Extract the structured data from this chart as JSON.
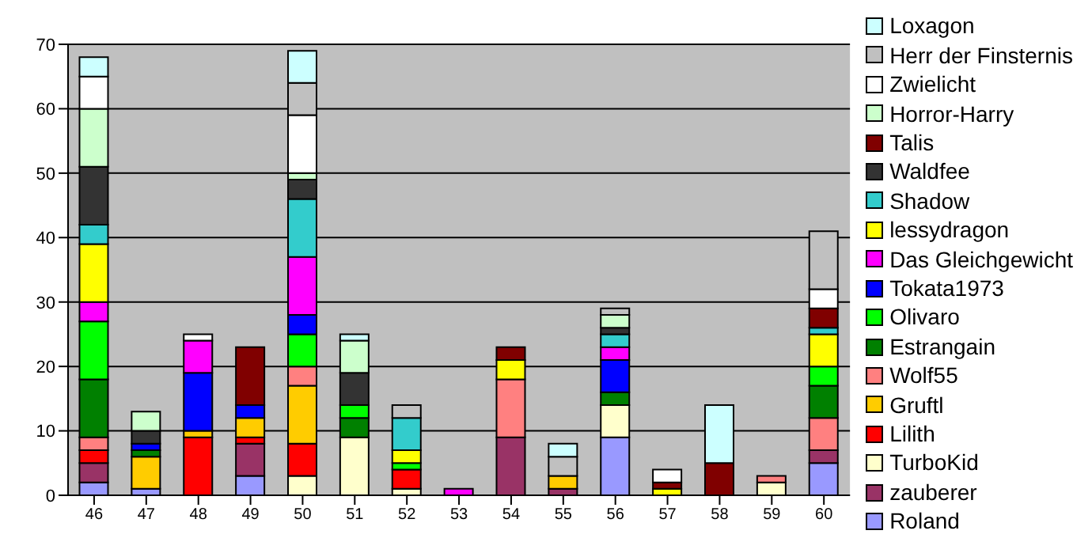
{
  "chart_data": {
    "type": "bar",
    "stacked": true,
    "categories": [
      "46",
      "47",
      "48",
      "49",
      "50",
      "51",
      "52",
      "53",
      "54",
      "55",
      "56",
      "57",
      "58",
      "59",
      "60"
    ],
    "ylim": [
      0,
      70
    ],
    "yticks": [
      0,
      10,
      20,
      30,
      40,
      50,
      60,
      70
    ],
    "grid": "y",
    "legend": "right",
    "series": [
      {
        "name": "Roland",
        "color": "#9999ff",
        "values": [
          2,
          1,
          0,
          3,
          0,
          0,
          0,
          0,
          0,
          0,
          9,
          0,
          0,
          0,
          5
        ]
      },
      {
        "name": "zauberer",
        "color": "#993366",
        "values": [
          3,
          0,
          0,
          5,
          0,
          0,
          0,
          0,
          9,
          1,
          0,
          0,
          0,
          0,
          2
        ]
      },
      {
        "name": "TurboKid",
        "color": "#ffffcc",
        "values": [
          0,
          0,
          0,
          0,
          3,
          9,
          1,
          0,
          0,
          0,
          5,
          0,
          0,
          2,
          0
        ]
      },
      {
        "name": "Lilith",
        "color": "#ff0000",
        "values": [
          2,
          0,
          9,
          1,
          5,
          0,
          3,
          0,
          0,
          0,
          0,
          0,
          0,
          0,
          0
        ]
      },
      {
        "name": "Gruftl",
        "color": "#ffcc00",
        "values": [
          0,
          5,
          1,
          3,
          9,
          0,
          0,
          0,
          0,
          2,
          0,
          0,
          0,
          0,
          0
        ]
      },
      {
        "name": "Wolf55",
        "color": "#ff8080",
        "values": [
          2,
          0,
          0,
          0,
          3,
          0,
          0,
          0,
          9,
          0,
          0,
          0,
          0,
          1,
          5
        ]
      },
      {
        "name": "Estrangain",
        "color": "#008000",
        "values": [
          9,
          1,
          0,
          0,
          0,
          3,
          0,
          0,
          0,
          0,
          2,
          0,
          0,
          0,
          5
        ]
      },
      {
        "name": "Olivaro",
        "color": "#00ff00",
        "values": [
          9,
          0,
          0,
          0,
          5,
          2,
          1,
          0,
          0,
          0,
          0,
          0,
          0,
          0,
          3
        ]
      },
      {
        "name": "Tokata1973",
        "color": "#0000ff",
        "values": [
          0,
          1,
          9,
          2,
          3,
          0,
          0,
          0,
          0,
          0,
          5,
          0,
          0,
          0,
          0
        ]
      },
      {
        "name": "Das Gleichgewicht",
        "color": "#ff00ff",
        "values": [
          3,
          0,
          5,
          0,
          9,
          0,
          0,
          1,
          0,
          0,
          2,
          0,
          0,
          0,
          0
        ]
      },
      {
        "name": "lessydragon",
        "color": "#ffff00",
        "values": [
          9,
          0,
          0,
          0,
          0,
          0,
          2,
          0,
          3,
          0,
          0,
          1,
          0,
          0,
          5
        ]
      },
      {
        "name": "Shadow",
        "color": "#33cccc",
        "values": [
          3,
          0,
          0,
          0,
          9,
          0,
          5,
          0,
          0,
          0,
          2,
          0,
          0,
          0,
          1
        ]
      },
      {
        "name": "Waldfee",
        "color": "#333333",
        "values": [
          9,
          2,
          0,
          0,
          3,
          5,
          0,
          0,
          0,
          0,
          1,
          0,
          0,
          0,
          0
        ]
      },
      {
        "name": "Talis",
        "color": "#800000",
        "values": [
          0,
          0,
          0,
          9,
          0,
          0,
          0,
          0,
          2,
          0,
          0,
          1,
          5,
          0,
          3
        ]
      },
      {
        "name": "Horror-Harry",
        "color": "#ccffcc",
        "values": [
          9,
          3,
          0,
          0,
          1,
          5,
          0,
          0,
          0,
          0,
          2,
          0,
          0,
          0,
          0
        ]
      },
      {
        "name": "Zwielicht",
        "color": "#ffffff",
        "values": [
          5,
          0,
          1,
          0,
          9,
          0,
          0,
          0,
          0,
          0,
          0,
          2,
          0,
          0,
          3
        ]
      },
      {
        "name": "Herr der Finsternis",
        "color": "#c0c0c0",
        "values": [
          0,
          0,
          0,
          0,
          5,
          0,
          2,
          0,
          0,
          3,
          1,
          0,
          0,
          0,
          9
        ]
      },
      {
        "name": "Loxagon",
        "color": "#ccffff",
        "values": [
          3,
          0,
          0,
          0,
          5,
          1,
          0,
          0,
          0,
          2,
          0,
          0,
          9,
          0,
          0
        ]
      }
    ]
  }
}
